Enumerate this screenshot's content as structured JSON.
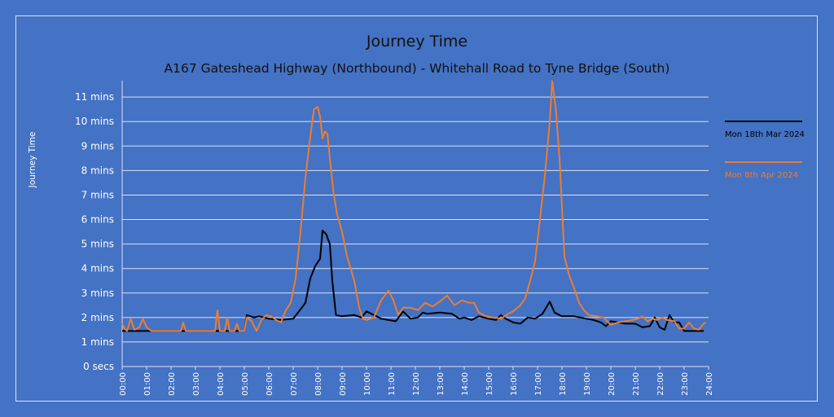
{
  "chart_data": {
    "type": "line",
    "title": "Journey Time",
    "subtitle": "A167 Gateshead Highway (Northbound) - Whitehall Road to Tyne Bridge (South)",
    "ylabel": "Journey Time",
    "xlim": [
      0,
      24
    ],
    "ylim": [
      0,
      11.67
    ],
    "y_ticks": [
      {
        "value": 0,
        "label": "0 secs"
      },
      {
        "value": 1,
        "label": "1 mins"
      },
      {
        "value": 2,
        "label": "2 mins"
      },
      {
        "value": 3,
        "label": "3 mins"
      },
      {
        "value": 4,
        "label": "4 mins"
      },
      {
        "value": 5,
        "label": "5 mins"
      },
      {
        "value": 6,
        "label": "6 mins"
      },
      {
        "value": 7,
        "label": "7 mins"
      },
      {
        "value": 8,
        "label": "8 mins"
      },
      {
        "value": 9,
        "label": "9 mins"
      },
      {
        "value": 10,
        "label": "10 mins"
      },
      {
        "value": 11,
        "label": "11 mins"
      }
    ],
    "x_ticks": [
      "00:00",
      "01:00",
      "02:00",
      "03:00",
      "04:00",
      "05:00",
      "06:00",
      "07:00",
      "08:00",
      "09:00",
      "10:00",
      "11:00",
      "12:00",
      "13:00",
      "14:00",
      "15:00",
      "16:00",
      "17:00",
      "18:00",
      "19:00",
      "20:00",
      "21:00",
      "22:00",
      "23:00",
      "24:00"
    ],
    "grid": true,
    "legend_position": "right",
    "series": [
      {
        "name": "Mon 18th Mar 2024",
        "color": "#000000",
        "points": [
          [
            0.0,
            1.45
          ],
          [
            1.0,
            1.45
          ],
          [
            2.0,
            1.45
          ],
          [
            3.0,
            1.45
          ],
          [
            4.0,
            1.45
          ],
          [
            5.0,
            1.45
          ],
          [
            5.1,
            2.1
          ],
          [
            5.4,
            2.0
          ],
          [
            5.6,
            2.05
          ],
          [
            6.0,
            1.95
          ],
          [
            6.5,
            1.9
          ],
          [
            7.0,
            1.95
          ],
          [
            7.2,
            2.2
          ],
          [
            7.5,
            2.6
          ],
          [
            7.7,
            3.6
          ],
          [
            7.9,
            4.1
          ],
          [
            8.1,
            4.4
          ],
          [
            8.2,
            5.55
          ],
          [
            8.35,
            5.4
          ],
          [
            8.5,
            5.0
          ],
          [
            8.6,
            3.5
          ],
          [
            8.75,
            2.1
          ],
          [
            9.0,
            2.05
          ],
          [
            9.5,
            2.1
          ],
          [
            9.8,
            2.0
          ],
          [
            10.0,
            2.25
          ],
          [
            10.3,
            2.1
          ],
          [
            10.6,
            1.95
          ],
          [
            10.9,
            1.9
          ],
          [
            11.2,
            1.85
          ],
          [
            11.5,
            2.25
          ],
          [
            11.8,
            1.95
          ],
          [
            12.1,
            2.0
          ],
          [
            12.3,
            2.2
          ],
          [
            12.5,
            2.15
          ],
          [
            13.0,
            2.2
          ],
          [
            13.5,
            2.15
          ],
          [
            13.8,
            1.95
          ],
          [
            14.0,
            2.0
          ],
          [
            14.3,
            1.9
          ],
          [
            14.6,
            2.05
          ],
          [
            15.0,
            1.95
          ],
          [
            15.3,
            1.9
          ],
          [
            15.5,
            2.1
          ],
          [
            15.7,
            1.95
          ],
          [
            16.0,
            1.8
          ],
          [
            16.3,
            1.75
          ],
          [
            16.6,
            2.0
          ],
          [
            16.9,
            1.95
          ],
          [
            17.2,
            2.15
          ],
          [
            17.5,
            2.65
          ],
          [
            17.7,
            2.2
          ],
          [
            18.0,
            2.05
          ],
          [
            18.5,
            2.05
          ],
          [
            19.0,
            1.95
          ],
          [
            19.3,
            1.9
          ],
          [
            19.6,
            1.8
          ],
          [
            19.8,
            1.65
          ],
          [
            20.0,
            1.85
          ],
          [
            20.3,
            1.8
          ],
          [
            20.6,
            1.75
          ],
          [
            21.0,
            1.75
          ],
          [
            21.3,
            1.6
          ],
          [
            21.6,
            1.65
          ],
          [
            21.8,
            2.0
          ],
          [
            22.0,
            1.6
          ],
          [
            22.2,
            1.5
          ],
          [
            22.4,
            2.1
          ],
          [
            22.6,
            1.8
          ],
          [
            22.8,
            1.8
          ],
          [
            23.0,
            1.45
          ],
          [
            23.5,
            1.45
          ],
          [
            23.8,
            1.45
          ]
        ]
      },
      {
        "name": "Mon 8th Apr 2024",
        "color": "#ed7d31",
        "points": [
          [
            0.0,
            1.75
          ],
          [
            0.1,
            1.55
          ],
          [
            0.2,
            1.45
          ],
          [
            0.35,
            1.95
          ],
          [
            0.5,
            1.5
          ],
          [
            0.7,
            1.6
          ],
          [
            0.85,
            1.95
          ],
          [
            1.0,
            1.6
          ],
          [
            1.2,
            1.45
          ],
          [
            2.0,
            1.45
          ],
          [
            2.4,
            1.45
          ],
          [
            2.5,
            1.8
          ],
          [
            2.6,
            1.45
          ],
          [
            3.0,
            1.45
          ],
          [
            3.8,
            1.45
          ],
          [
            3.9,
            2.3
          ],
          [
            4.0,
            1.45
          ],
          [
            4.2,
            1.45
          ],
          [
            4.3,
            2.0
          ],
          [
            4.4,
            1.45
          ],
          [
            4.6,
            1.45
          ],
          [
            4.7,
            1.75
          ],
          [
            4.8,
            1.45
          ],
          [
            5.0,
            1.45
          ],
          [
            5.1,
            2.0
          ],
          [
            5.3,
            1.85
          ],
          [
            5.5,
            1.45
          ],
          [
            5.7,
            1.9
          ],
          [
            5.9,
            2.1
          ],
          [
            6.1,
            2.05
          ],
          [
            6.3,
            1.9
          ],
          [
            6.5,
            1.8
          ],
          [
            6.7,
            2.3
          ],
          [
            6.9,
            2.6
          ],
          [
            7.1,
            3.6
          ],
          [
            7.3,
            5.5
          ],
          [
            7.5,
            7.7
          ],
          [
            7.7,
            9.4
          ],
          [
            7.85,
            10.5
          ],
          [
            8.0,
            10.6
          ],
          [
            8.1,
            10.2
          ],
          [
            8.2,
            9.3
          ],
          [
            8.3,
            9.6
          ],
          [
            8.4,
            9.5
          ],
          [
            8.5,
            8.5
          ],
          [
            8.65,
            7.1
          ],
          [
            8.8,
            6.2
          ],
          [
            9.0,
            5.5
          ],
          [
            9.2,
            4.5
          ],
          [
            9.5,
            3.5
          ],
          [
            9.7,
            2.4
          ],
          [
            9.85,
            1.95
          ],
          [
            10.0,
            1.9
          ],
          [
            10.3,
            2.0
          ],
          [
            10.6,
            2.7
          ],
          [
            10.9,
            3.1
          ],
          [
            11.1,
            2.7
          ],
          [
            11.3,
            2.1
          ],
          [
            11.5,
            2.4
          ],
          [
            11.8,
            2.4
          ],
          [
            12.1,
            2.3
          ],
          [
            12.4,
            2.6
          ],
          [
            12.7,
            2.45
          ],
          [
            13.0,
            2.65
          ],
          [
            13.3,
            2.9
          ],
          [
            13.6,
            2.5
          ],
          [
            13.9,
            2.7
          ],
          [
            14.2,
            2.6
          ],
          [
            14.4,
            2.6
          ],
          [
            14.6,
            2.2
          ],
          [
            14.9,
            2.05
          ],
          [
            15.2,
            2.0
          ],
          [
            15.5,
            1.95
          ],
          [
            15.8,
            2.15
          ],
          [
            16.0,
            2.25
          ],
          [
            16.3,
            2.5
          ],
          [
            16.5,
            2.8
          ],
          [
            16.7,
            3.5
          ],
          [
            16.9,
            4.3
          ],
          [
            17.1,
            6.0
          ],
          [
            17.3,
            7.8
          ],
          [
            17.5,
            10.0
          ],
          [
            17.6,
            11.65
          ],
          [
            17.75,
            10.5
          ],
          [
            17.9,
            8.5
          ],
          [
            18.0,
            6.5
          ],
          [
            18.1,
            4.5
          ],
          [
            18.3,
            3.7
          ],
          [
            18.5,
            3.2
          ],
          [
            18.7,
            2.6
          ],
          [
            18.9,
            2.3
          ],
          [
            19.1,
            2.1
          ],
          [
            19.4,
            2.05
          ],
          [
            19.7,
            2.0
          ],
          [
            20.0,
            1.7
          ],
          [
            20.3,
            1.8
          ],
          [
            20.6,
            1.85
          ],
          [
            20.9,
            1.9
          ],
          [
            21.1,
            1.95
          ],
          [
            21.3,
            2.05
          ],
          [
            21.5,
            1.85
          ],
          [
            21.7,
            1.95
          ],
          [
            21.9,
            1.9
          ],
          [
            22.1,
            2.0
          ],
          [
            22.3,
            1.9
          ],
          [
            22.6,
            1.85
          ],
          [
            22.8,
            1.55
          ],
          [
            23.0,
            1.55
          ],
          [
            23.2,
            1.8
          ],
          [
            23.4,
            1.55
          ],
          [
            23.6,
            1.5
          ],
          [
            23.8,
            1.75
          ],
          [
            23.9,
            1.8
          ]
        ]
      }
    ]
  }
}
